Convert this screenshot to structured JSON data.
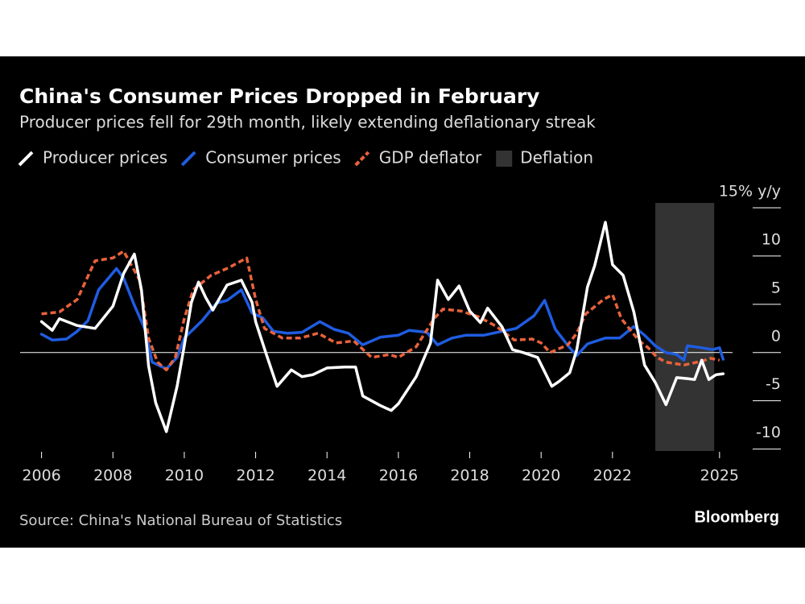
{
  "chart_data": {
    "type": "line",
    "title": "China's Consumer Prices Dropped in February",
    "subtitle": "Producer prices fell for 29th month, likely extending deflationary streak",
    "source": "Source: China's National Bureau of Statistics",
    "credit": "Bloomberg",
    "xlim": [
      2005.4,
      2025.5
    ],
    "xticks": [
      2006,
      2008,
      2010,
      2012,
      2014,
      2016,
      2018,
      2020,
      2022,
      2025
    ],
    "ylim": [
      -10.2,
      15.5
    ],
    "yticks": [
      -10,
      -5,
      0,
      5,
      10,
      {
        "value": 15,
        "label": "15% y/y"
      }
    ],
    "zero_line": true,
    "shading": {
      "name": "Deflation",
      "color": "#333333",
      "x": [
        2023.2,
        2024.85
      ]
    },
    "series": [
      {
        "name": "Producer prices",
        "color": "#ffffff",
        "dash": false,
        "x": [
          2006.0,
          2006.3,
          2006.5,
          2007.0,
          2007.5,
          2008.0,
          2008.3,
          2008.6,
          2008.8,
          2009.0,
          2009.2,
          2009.5,
          2009.8,
          2010.0,
          2010.2,
          2010.4,
          2010.6,
          2010.8,
          2011.2,
          2011.6,
          2011.9,
          2012.0,
          2012.3,
          2012.6,
          2013.0,
          2013.3,
          2013.6,
          2014.0,
          2014.5,
          2014.8,
          2015.0,
          2015.5,
          2015.8,
          2016.0,
          2016.5,
          2016.9,
          2017.1,
          2017.4,
          2017.7,
          2018.0,
          2018.3,
          2018.5,
          2018.9,
          2019.2,
          2019.5,
          2019.9,
          2020.3,
          2020.5,
          2020.8,
          2021.0,
          2021.3,
          2021.5,
          2021.8,
          2022.0,
          2022.3,
          2022.6,
          2022.9,
          2023.2,
          2023.5,
          2023.8,
          2024.1,
          2024.3,
          2024.5,
          2024.7,
          2024.9,
          2025.1
        ],
        "values": [
          3.2,
          2.3,
          3.5,
          2.8,
          2.5,
          4.8,
          8.2,
          10.2,
          6.5,
          -1.4,
          -5.2,
          -8.2,
          -3.5,
          0.7,
          5.2,
          7.3,
          5.7,
          4.4,
          7.0,
          7.5,
          5.2,
          3.2,
          -0.2,
          -3.5,
          -1.8,
          -2.5,
          -2.3,
          -1.6,
          -1.5,
          -1.5,
          -4.5,
          -5.5,
          -6.0,
          -5.3,
          -2.5,
          1.0,
          7.5,
          5.5,
          6.9,
          4.3,
          3.1,
          4.6,
          2.7,
          0.3,
          0.0,
          -0.5,
          -3.5,
          -3.0,
          -2.1,
          0.3,
          6.8,
          9.0,
          13.5,
          9.1,
          8.0,
          4.2,
          -1.3,
          -3.1,
          -5.4,
          -2.6,
          -2.7,
          -2.8,
          -0.8,
          -2.8,
          -2.3,
          -2.2
        ]
      },
      {
        "name": "Consumer prices",
        "color": "#1f5ce0",
        "dash": false,
        "x": [
          2006.0,
          2006.3,
          2006.7,
          2007.0,
          2007.3,
          2007.6,
          2008.1,
          2008.3,
          2008.6,
          2008.9,
          2009.1,
          2009.5,
          2009.8,
          2010.0,
          2010.5,
          2010.9,
          2011.2,
          2011.6,
          2011.9,
          2012.2,
          2012.5,
          2012.9,
          2013.3,
          2013.8,
          2014.2,
          2014.6,
          2015.0,
          2015.5,
          2016.0,
          2016.3,
          2016.8,
          2017.1,
          2017.5,
          2017.9,
          2018.4,
          2018.9,
          2019.3,
          2019.8,
          2020.1,
          2020.4,
          2020.8,
          2021.0,
          2021.3,
          2021.8,
          2022.2,
          2022.6,
          2022.9,
          2023.2,
          2023.5,
          2023.8,
          2024.0,
          2024.1,
          2024.5,
          2024.8,
          2025.0,
          2025.1
        ],
        "values": [
          1.9,
          1.3,
          1.4,
          2.2,
          3.3,
          6.5,
          8.7,
          7.7,
          4.9,
          2.4,
          -1.0,
          -1.7,
          -0.5,
          1.5,
          3.3,
          5.1,
          5.4,
          6.5,
          4.1,
          3.6,
          2.2,
          2.0,
          2.1,
          3.2,
          2.4,
          2.0,
          0.8,
          1.6,
          1.8,
          2.3,
          2.1,
          0.8,
          1.5,
          1.8,
          1.8,
          2.2,
          2.5,
          3.8,
          5.4,
          2.4,
          0.5,
          -0.3,
          0.9,
          1.5,
          1.5,
          2.7,
          1.8,
          0.7,
          0.0,
          -0.2,
          -0.8,
          0.7,
          0.5,
          0.3,
          0.5,
          -0.7
        ]
      },
      {
        "name": "GDP deflator",
        "color": "#e8623a",
        "dash": true,
        "x": [
          2006.0,
          2006.5,
          2007.0,
          2007.5,
          2008.0,
          2008.3,
          2008.75,
          2009.0,
          2009.25,
          2009.5,
          2009.75,
          2010.0,
          2010.25,
          2010.75,
          2011.25,
          2011.75,
          2012.0,
          2012.25,
          2012.75,
          2013.25,
          2013.75,
          2014.25,
          2014.75,
          2015.25,
          2015.75,
          2016.0,
          2016.5,
          2017.0,
          2017.25,
          2017.75,
          2018.25,
          2018.75,
          2019.25,
          2019.75,
          2020.0,
          2020.25,
          2020.75,
          2021.0,
          2021.25,
          2021.75,
          2022.0,
          2022.25,
          2022.75,
          2023.0,
          2023.25,
          2023.5,
          2024.0,
          2024.5,
          2024.75,
          2025.0
        ],
        "values": [
          4.0,
          4.2,
          5.5,
          9.5,
          9.8,
          10.5,
          7.5,
          1.5,
          -1.0,
          -1.8,
          -0.5,
          3.5,
          6.5,
          8.0,
          8.8,
          9.8,
          5.5,
          2.5,
          1.5,
          1.5,
          2.0,
          1.0,
          1.2,
          -0.5,
          -0.2,
          -0.5,
          0.6,
          3.5,
          4.5,
          4.3,
          3.7,
          2.7,
          1.3,
          1.4,
          1.0,
          0.0,
          0.8,
          2.0,
          4.0,
          5.5,
          6.0,
          3.5,
          1.2,
          0.5,
          -0.5,
          -1.0,
          -1.3,
          -0.9,
          -0.6,
          -0.8
        ]
      }
    ]
  }
}
